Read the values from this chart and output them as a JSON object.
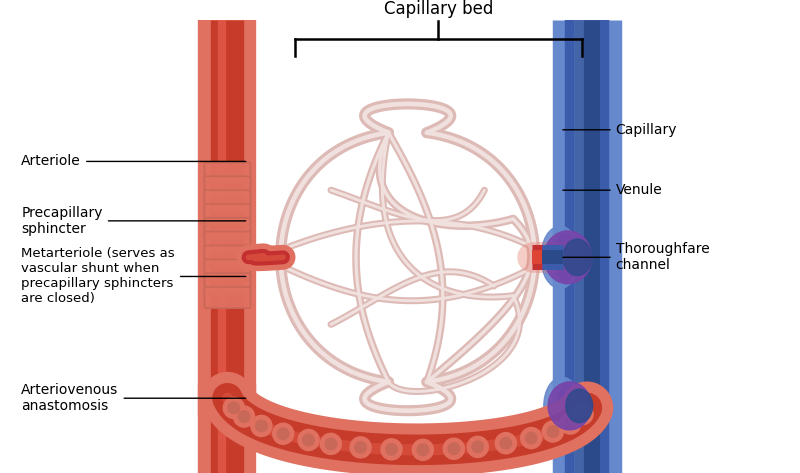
{
  "title": "Capillary bed",
  "bg_color": "#ffffff",
  "artery_red": "#c73b2a",
  "artery_salmon": "#e07060",
  "artery_light": "#ee9988",
  "vein_dark": "#2a4a8a",
  "vein_mid": "#3a5caa",
  "vein_light": "#6688cc",
  "cap_outer": "#ddbab5",
  "cap_inner": "#f0e0de",
  "meta_red": "#c43030",
  "sphincter": "#c86858",
  "purple": "#7844aa",
  "labels": {
    "arteriole": "Arteriole",
    "precapillary": "Precapillary\nsphincter",
    "metarteriole": "Metarteriole (serves as\nvascular shunt when\nprecapillary sphincters\nare closed)",
    "av_anastomosis": "Arteriovenous\nanastomosis",
    "capillary": "Capillary",
    "venule": "Venule",
    "thoroughfare": "Thoroughfare\nchannel"
  }
}
